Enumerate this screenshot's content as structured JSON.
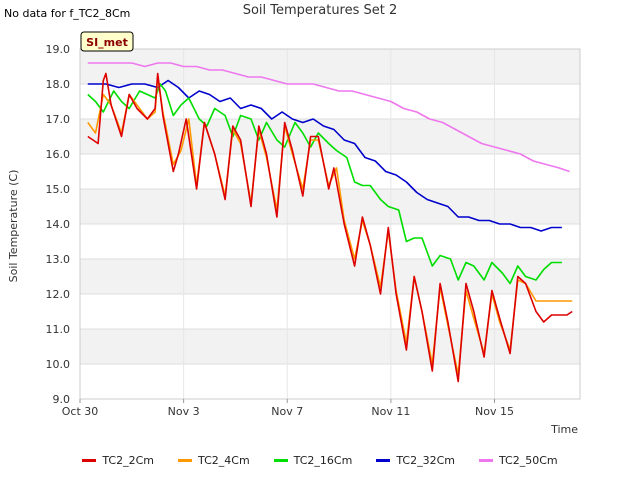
{
  "header": {
    "nodata": "No data for f_TC2_8Cm",
    "title": "Soil Temperatures Set 2"
  },
  "badge": {
    "label": "SI_met",
    "bg": "#ffffcc",
    "border": "#000000",
    "text_color": "#8b0000"
  },
  "chart_data": {
    "type": "line",
    "title": "Soil Temperatures Set 2",
    "xlabel": "Time",
    "ylabel": "Soil Temperature (C)",
    "ylim": [
      9.0,
      19.0
    ],
    "xlim_days": [
      0,
      19.3
    ],
    "yticks": [
      "9.0",
      "10.0",
      "11.0",
      "12.0",
      "13.0",
      "14.0",
      "15.0",
      "16.0",
      "17.0",
      "18.0",
      "19.0"
    ],
    "xticks": [
      {
        "label": "Oct 30",
        "day": 0
      },
      {
        "label": "Nov 3",
        "day": 4
      },
      {
        "label": "Nov 7",
        "day": 8
      },
      {
        "label": "Nov 11",
        "day": 12
      },
      {
        "label": "Nov 15",
        "day": 16
      }
    ],
    "grid": true,
    "legend_position": "bottom",
    "series": [
      {
        "name": "TC2_2Cm",
        "color": "#dd0000",
        "x": [
          0.3,
          0.5,
          0.7,
          0.9,
          1.0,
          1.2,
          1.6,
          1.9,
          2.2,
          2.6,
          2.9,
          3.0,
          3.2,
          3.6,
          3.8,
          4.1,
          4.5,
          4.8,
          5.2,
          5.6,
          5.9,
          6.2,
          6.6,
          6.9,
          7.2,
          7.6,
          7.9,
          8.2,
          8.6,
          8.9,
          9.2,
          9.6,
          9.8,
          10.2,
          10.6,
          10.9,
          11.2,
          11.6,
          11.9,
          12.2,
          12.6,
          12.9,
          13.2,
          13.6,
          13.9,
          14.2,
          14.6,
          14.9,
          15.2,
          15.6,
          15.9,
          16.2,
          16.6,
          16.9,
          17.2,
          17.6,
          17.9,
          18.2,
          18.5,
          18.8,
          19.0
        ],
        "y": [
          16.5,
          16.4,
          16.3,
          18.1,
          18.3,
          17.4,
          16.5,
          17.7,
          17.3,
          17.0,
          17.3,
          18.3,
          17.1,
          15.5,
          16.0,
          17.0,
          15.0,
          16.9,
          16.0,
          14.7,
          16.8,
          16.4,
          14.5,
          16.8,
          16.0,
          14.2,
          16.9,
          16.1,
          14.8,
          16.5,
          16.5,
          15.0,
          15.6,
          14.0,
          12.8,
          14.2,
          13.4,
          12.0,
          13.9,
          12.0,
          10.4,
          12.5,
          11.5,
          9.8,
          12.3,
          11.2,
          9.5,
          12.3,
          11.5,
          10.2,
          12.1,
          11.3,
          10.3,
          12.5,
          12.3,
          11.5,
          11.2,
          11.4,
          11.4,
          11.4,
          11.5
        ]
      },
      {
        "name": "TC2_4Cm",
        "color": "#ff9900",
        "x": [
          0.3,
          0.6,
          0.9,
          1.2,
          1.6,
          1.9,
          2.3,
          2.6,
          2.9,
          3.0,
          3.2,
          3.6,
          3.9,
          4.2,
          4.5,
          4.8,
          5.2,
          5.6,
          5.9,
          6.2,
          6.6,
          6.9,
          7.2,
          7.6,
          7.9,
          8.2,
          8.6,
          8.9,
          9.2,
          9.6,
          9.9,
          10.2,
          10.6,
          10.9,
          11.2,
          11.6,
          11.9,
          12.2,
          12.6,
          12.9,
          13.2,
          13.6,
          13.9,
          14.2,
          14.6,
          14.9,
          15.2,
          15.6,
          15.9,
          16.2,
          16.6,
          16.9,
          17.2,
          17.6,
          17.9,
          18.3,
          19.0
        ],
        "y": [
          16.9,
          16.6,
          17.7,
          17.4,
          16.6,
          17.7,
          17.3,
          17.0,
          17.2,
          18.2,
          17.2,
          15.7,
          16.1,
          17.0,
          15.1,
          16.9,
          16.0,
          14.8,
          16.7,
          16.3,
          14.6,
          16.7,
          15.9,
          14.4,
          16.8,
          16.0,
          15.0,
          16.4,
          16.4,
          15.1,
          15.6,
          14.1,
          13.0,
          14.1,
          13.4,
          12.2,
          13.8,
          12.1,
          10.6,
          12.5,
          11.5,
          10.0,
          12.2,
          11.1,
          9.7,
          12.1,
          11.3,
          10.3,
          12.0,
          11.2,
          10.4,
          12.4,
          12.3,
          11.8,
          11.8,
          11.8,
          11.8
        ]
      },
      {
        "name": "TC2_16Cm",
        "color": "#00dd00",
        "x": [
          0.3,
          0.6,
          0.9,
          1.3,
          1.6,
          1.9,
          2.3,
          2.6,
          2.9,
          3.1,
          3.3,
          3.6,
          3.9,
          4.2,
          4.6,
          4.9,
          5.2,
          5.6,
          5.9,
          6.2,
          6.6,
          6.9,
          7.2,
          7.6,
          7.9,
          8.3,
          8.6,
          8.9,
          9.2,
          9.6,
          9.9,
          10.3,
          10.6,
          10.9,
          11.2,
          11.6,
          11.9,
          12.3,
          12.6,
          12.9,
          13.2,
          13.6,
          13.9,
          14.3,
          14.6,
          14.9,
          15.2,
          15.6,
          15.9,
          16.3,
          16.6,
          16.9,
          17.2,
          17.6,
          17.9,
          18.2,
          18.6
        ],
        "y": [
          17.7,
          17.5,
          17.2,
          17.8,
          17.5,
          17.3,
          17.8,
          17.7,
          17.6,
          18.0,
          17.8,
          17.1,
          17.4,
          17.6,
          17.0,
          16.8,
          17.3,
          17.1,
          16.5,
          17.1,
          17.0,
          16.4,
          16.9,
          16.4,
          16.2,
          16.9,
          16.6,
          16.2,
          16.6,
          16.3,
          16.1,
          15.9,
          15.2,
          15.1,
          15.1,
          14.7,
          14.5,
          14.4,
          13.5,
          13.6,
          13.6,
          12.8,
          13.1,
          13.0,
          12.4,
          12.9,
          12.8,
          12.4,
          12.9,
          12.6,
          12.3,
          12.8,
          12.5,
          12.4,
          12.7,
          12.9,
          12.9
        ]
      },
      {
        "name": "TC2_32Cm",
        "color": "#0000cc",
        "x": [
          0.3,
          1.0,
          1.5,
          2.0,
          2.5,
          3.0,
          3.4,
          3.8,
          4.2,
          4.6,
          5.0,
          5.4,
          5.8,
          6.2,
          6.6,
          7.0,
          7.4,
          7.8,
          8.2,
          8.6,
          9.0,
          9.4,
          9.8,
          10.2,
          10.6,
          11.0,
          11.4,
          11.8,
          12.2,
          12.6,
          13.0,
          13.4,
          13.8,
          14.2,
          14.6,
          15.0,
          15.4,
          15.8,
          16.2,
          16.6,
          17.0,
          17.4,
          17.8,
          18.2,
          18.6
        ],
        "y": [
          18.0,
          18.0,
          17.9,
          18.0,
          18.0,
          17.9,
          18.1,
          17.9,
          17.6,
          17.8,
          17.7,
          17.5,
          17.6,
          17.3,
          17.4,
          17.3,
          17.0,
          17.2,
          17.0,
          16.9,
          17.0,
          16.8,
          16.7,
          16.4,
          16.3,
          15.9,
          15.8,
          15.5,
          15.4,
          15.2,
          14.9,
          14.7,
          14.6,
          14.5,
          14.2,
          14.2,
          14.1,
          14.1,
          14.0,
          14.0,
          13.9,
          13.9,
          13.8,
          13.9,
          13.9
        ]
      },
      {
        "name": "TC2_50Cm",
        "color": "#ee77ee",
        "x": [
          0.3,
          1.0,
          1.5,
          2.0,
          2.5,
          3.0,
          3.5,
          4.0,
          4.5,
          5.0,
          5.5,
          6.0,
          6.5,
          7.0,
          7.5,
          8.0,
          8.5,
          9.0,
          9.5,
          10.0,
          10.5,
          11.0,
          11.5,
          12.0,
          12.5,
          13.0,
          13.5,
          14.0,
          14.5,
          15.0,
          15.5,
          16.0,
          16.5,
          17.0,
          17.5,
          18.0,
          18.5,
          18.9
        ],
        "y": [
          18.6,
          18.6,
          18.6,
          18.6,
          18.5,
          18.6,
          18.6,
          18.5,
          18.5,
          18.4,
          18.4,
          18.3,
          18.2,
          18.2,
          18.1,
          18.0,
          18.0,
          18.0,
          17.9,
          17.8,
          17.8,
          17.7,
          17.6,
          17.5,
          17.3,
          17.2,
          17.0,
          16.9,
          16.7,
          16.5,
          16.3,
          16.2,
          16.1,
          16.0,
          15.8,
          15.7,
          15.6,
          15.5
        ]
      }
    ]
  }
}
